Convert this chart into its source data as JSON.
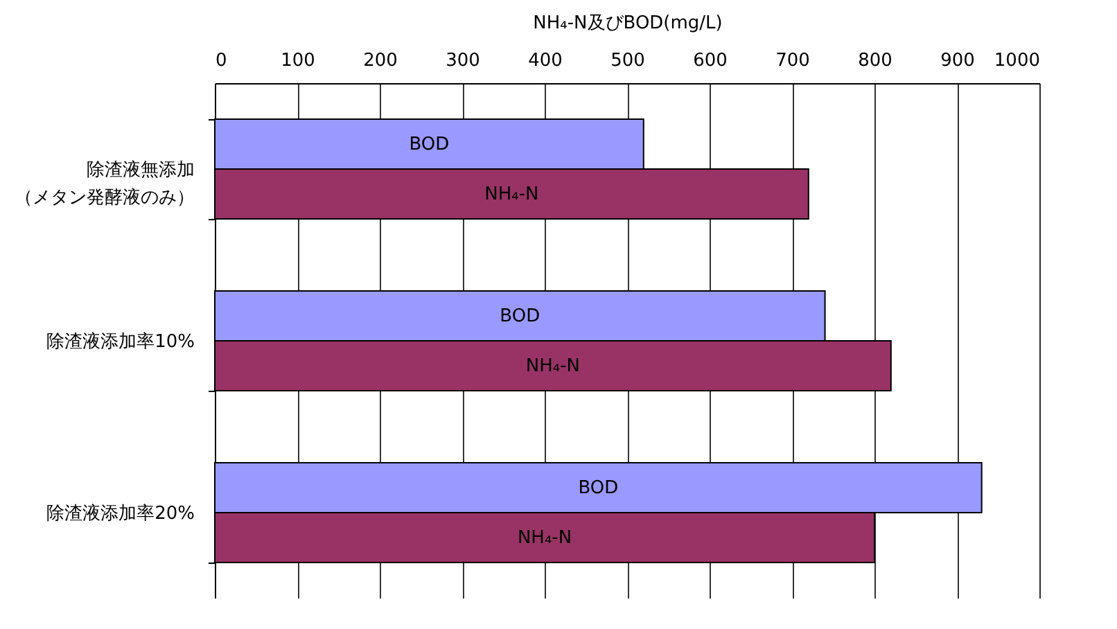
{
  "chart_data": {
    "type": "bar",
    "orientation": "horizontal",
    "xlabel": "NH₄-N及びBOD(mg/L)",
    "categories": [
      "除渣液無添加（メタン発酵液のみ）",
      "除渣液添加率10%",
      "除渣液添加率20%"
    ],
    "series": [
      {
        "name": "BOD",
        "color": "#9999ff",
        "values": [
          520,
          740,
          930
        ]
      },
      {
        "name": "NH₄-N",
        "color": "#993366",
        "values": [
          720,
          820,
          800
        ]
      }
    ],
    "xlim": [
      0,
      1000
    ],
    "xticks": [
      0,
      100,
      200,
      300,
      400,
      500,
      600,
      700,
      800,
      900,
      1000
    ],
    "grid": "x",
    "legend": false
  }
}
